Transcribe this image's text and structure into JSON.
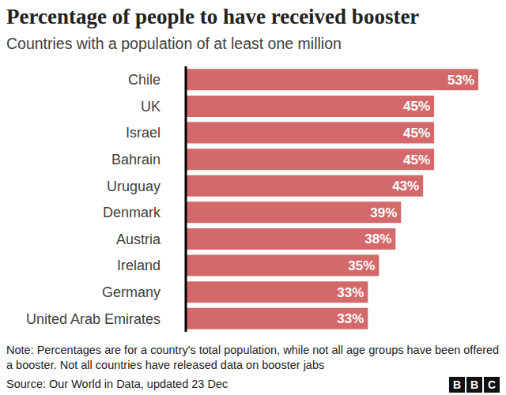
{
  "chart_data": {
    "type": "bar",
    "title": "Percentage of people to have received booster",
    "subtitle": "Countries with a population of at least one million",
    "categories": [
      "Chile",
      "UK",
      "Israel",
      "Bahrain",
      "Uruguay",
      "Denmark",
      "Austria",
      "Ireland",
      "Germany",
      "United Arab Emirates"
    ],
    "values": [
      53,
      45,
      45,
      45,
      43,
      39,
      38,
      35,
      33,
      33
    ],
    "value_labels": [
      "53%",
      "45%",
      "45%",
      "45%",
      "43%",
      "39%",
      "38%",
      "35%",
      "33%",
      "33%"
    ],
    "color": "#d4696b",
    "orientation": "horizontal",
    "data_labels": true,
    "tick_labels": "y",
    "xlim": [
      0,
      53
    ],
    "note": "Note: Percentages are for a country's total population, while not all age groups have been offered a booster. Not all countries have released data on booster jabs",
    "source": "Source: Our World in Data, updated 23 Dec",
    "logo": "BBC"
  }
}
